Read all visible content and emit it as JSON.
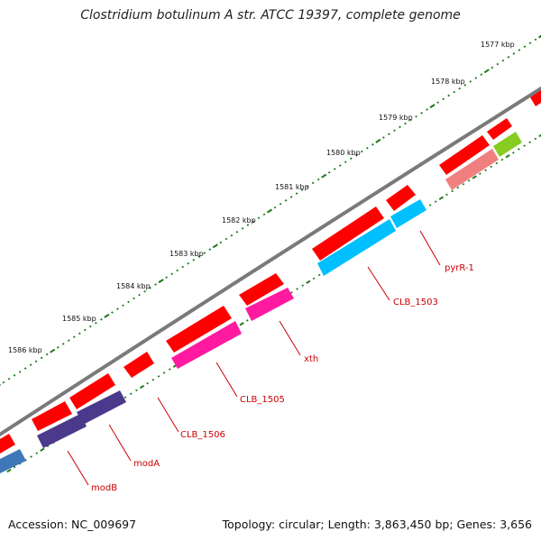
{
  "title": "Clostridium botulinum A str. ATCC 19397, complete genome",
  "footer": {
    "accession": "Accession: NC_009697",
    "stats": "Topology: circular; Length: 3,863,450 bp; Genes: 3,656"
  },
  "scale": {
    "tick_labels": [
      "1577 kbp",
      "1578 kbp",
      "1579 kbp",
      "1580 kbp",
      "1581 kbp",
      "1582 kbp",
      "1583 kbp",
      "1584 kbp",
      "1585 kbp",
      "1586 kbp"
    ]
  },
  "gene_labels": [
    "pyrR-1",
    "CLB_1503",
    "xth",
    "CLB_1505",
    "CLB_1506",
    "modA",
    "modB"
  ],
  "colors": {
    "backbone": "#7a7a7a",
    "tick": "#1a7a1a",
    "cds_forward": "#ff0000",
    "pyrR": "#00bfff",
    "xth": "#ff1aa0",
    "modA": "#4b3a8c",
    "modB": "#3f78b8",
    "lime": "#88cc22",
    "salmon": "#f08080",
    "label": "#cc0000"
  }
}
